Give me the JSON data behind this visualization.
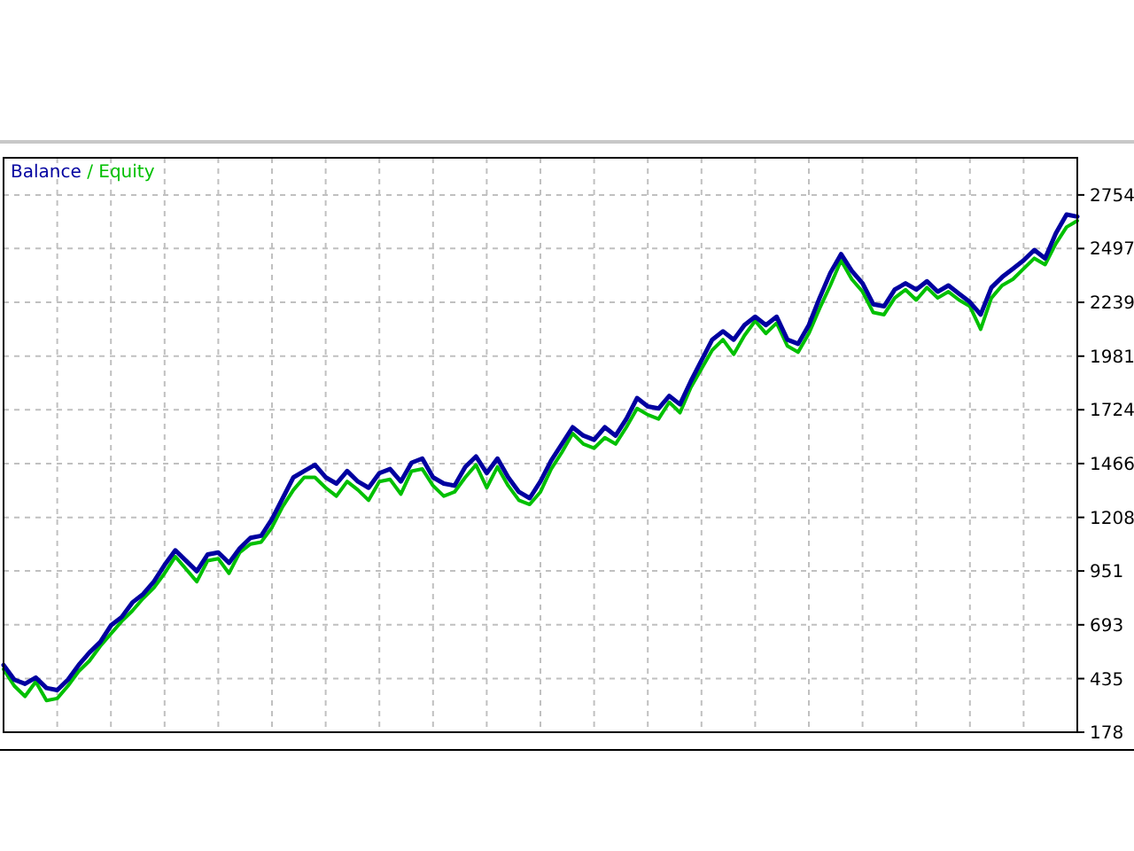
{
  "chart_data": {
    "type": "line",
    "categories": [
      null,
      null,
      null,
      null,
      null,
      null,
      null,
      null,
      null,
      null,
      null,
      null,
      null,
      null,
      null,
      null,
      null,
      null,
      null,
      null,
      null,
      null,
      null,
      null,
      null,
      null,
      null,
      null,
      null,
      null,
      null,
      null,
      null,
      null,
      null,
      null,
      null,
      null,
      null,
      null,
      null,
      null,
      null,
      null,
      null,
      null,
      null,
      null,
      null,
      null,
      null,
      null,
      null,
      null,
      null,
      null,
      null,
      null,
      null,
      null,
      null,
      null,
      null,
      null,
      null,
      null,
      null,
      null,
      null,
      null,
      null,
      null,
      null,
      null,
      null,
      null,
      null,
      null,
      null,
      null,
      null,
      null,
      null,
      null,
      null,
      null,
      null,
      null,
      null,
      null,
      null,
      null,
      null,
      null,
      null,
      null,
      null,
      null,
      null,
      null,
      null
    ],
    "series": [
      {
        "name": "Equity",
        "color": "#00c000",
        "values": [
          480,
          400,
          350,
          420,
          330,
          340,
          400,
          470,
          520,
          590,
          650,
          710,
          760,
          820,
          870,
          940,
          1020,
          960,
          900,
          1000,
          1010,
          940,
          1040,
          1080,
          1090,
          1160,
          1260,
          1340,
          1400,
          1400,
          1350,
          1310,
          1380,
          1340,
          1290,
          1380,
          1390,
          1320,
          1430,
          1440,
          1360,
          1310,
          1330,
          1400,
          1460,
          1350,
          1450,
          1360,
          1290,
          1270,
          1330,
          1440,
          1520,
          1610,
          1560,
          1540,
          1590,
          1560,
          1640,
          1730,
          1700,
          1680,
          1760,
          1710,
          1830,
          1920,
          2010,
          2060,
          1990,
          2080,
          2150,
          2090,
          2140,
          2030,
          2000,
          2090,
          2210,
          2320,
          2440,
          2350,
          2290,
          2190,
          2180,
          2260,
          2300,
          2250,
          2310,
          2260,
          2290,
          2250,
          2220,
          2110,
          2260,
          2320,
          2350,
          2400,
          2450,
          2420,
          2520,
          2600,
          2630
        ]
      },
      {
        "name": "Balance",
        "color": "#0000a0",
        "values": [
          500,
          430,
          410,
          440,
          390,
          380,
          430,
          500,
          560,
          610,
          690,
          730,
          800,
          840,
          900,
          980,
          1050,
          1000,
          950,
          1030,
          1040,
          990,
          1060,
          1110,
          1120,
          1200,
          1300,
          1400,
          1430,
          1460,
          1400,
          1370,
          1430,
          1380,
          1350,
          1420,
          1440,
          1380,
          1470,
          1490,
          1400,
          1370,
          1360,
          1450,
          1500,
          1420,
          1490,
          1400,
          1330,
          1300,
          1380,
          1480,
          1560,
          1640,
          1600,
          1580,
          1640,
          1600,
          1680,
          1780,
          1740,
          1730,
          1790,
          1750,
          1860,
          1960,
          2060,
          2100,
          2060,
          2130,
          2170,
          2130,
          2170,
          2060,
          2040,
          2130,
          2260,
          2380,
          2470,
          2390,
          2330,
          2230,
          2220,
          2300,
          2330,
          2300,
          2340,
          2290,
          2320,
          2280,
          2240,
          2180,
          2310,
          2360,
          2400,
          2440,
          2490,
          2450,
          2570,
          2660,
          2650
        ]
      }
    ],
    "ylim": [
      178,
      2932
    ],
    "yticks": [
      178,
      435,
      693,
      951,
      1208,
      1466,
      1724,
      1981,
      2239,
      2497,
      2754
    ],
    "grid": true,
    "legend": "top left",
    "annotations": [
      "/"
    ]
  }
}
